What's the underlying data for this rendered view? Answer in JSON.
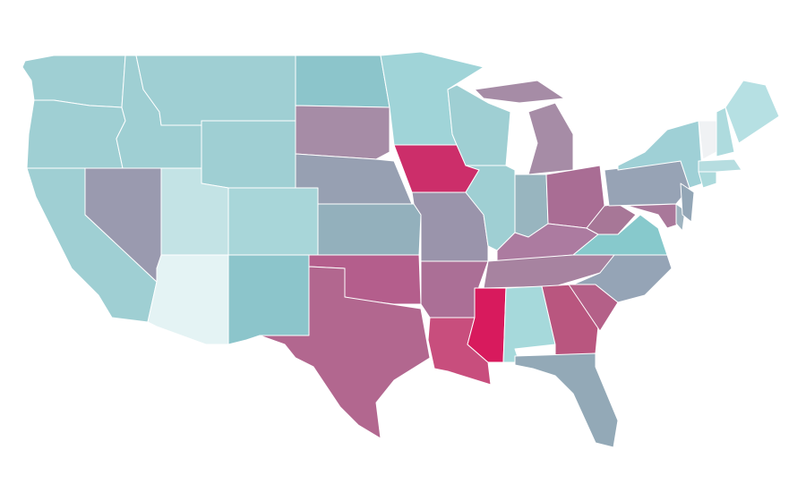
{
  "map": {
    "fills": [
      "#9fcfd3",
      "#9fcfd3",
      "#9fcfd3",
      "#9fcfd3",
      "#9a9aaf",
      "#9fcfd3",
      "#9fcfd3",
      "#c3e3e5",
      "#e4f3f4",
      "#a8d6d9",
      "#8cc5cb",
      "#8cc5cb",
      "#a68ca6",
      "#97a0b2",
      "#93b0bc",
      "#b45e8c",
      "#b2678f",
      "#a0d4d8",
      "#cc2e6a",
      "#9a94ab",
      "#ab6f96",
      "#c84e7d",
      "#9fcfd3",
      "#9fcfd3",
      "#a68ca6",
      "#a68ca6",
      "#98b5bf",
      "#a96d94",
      "#ac7ba0",
      "#a783a0",
      "#d81a5d",
      "#a6d9db",
      "#b9567f",
      "#93a9b7",
      "#b46088",
      "#95a4b6",
      "#87c9cc",
      "#a77797",
      "#97a3b5",
      "#9fd0d6",
      "#a9789a",
      "#9fb4c0",
      "#93a6b6",
      "#acdadc",
      "#b6dde0",
      "#f0f2f4",
      "#aedbde",
      "#b6e0e3"
    ]
  }
}
